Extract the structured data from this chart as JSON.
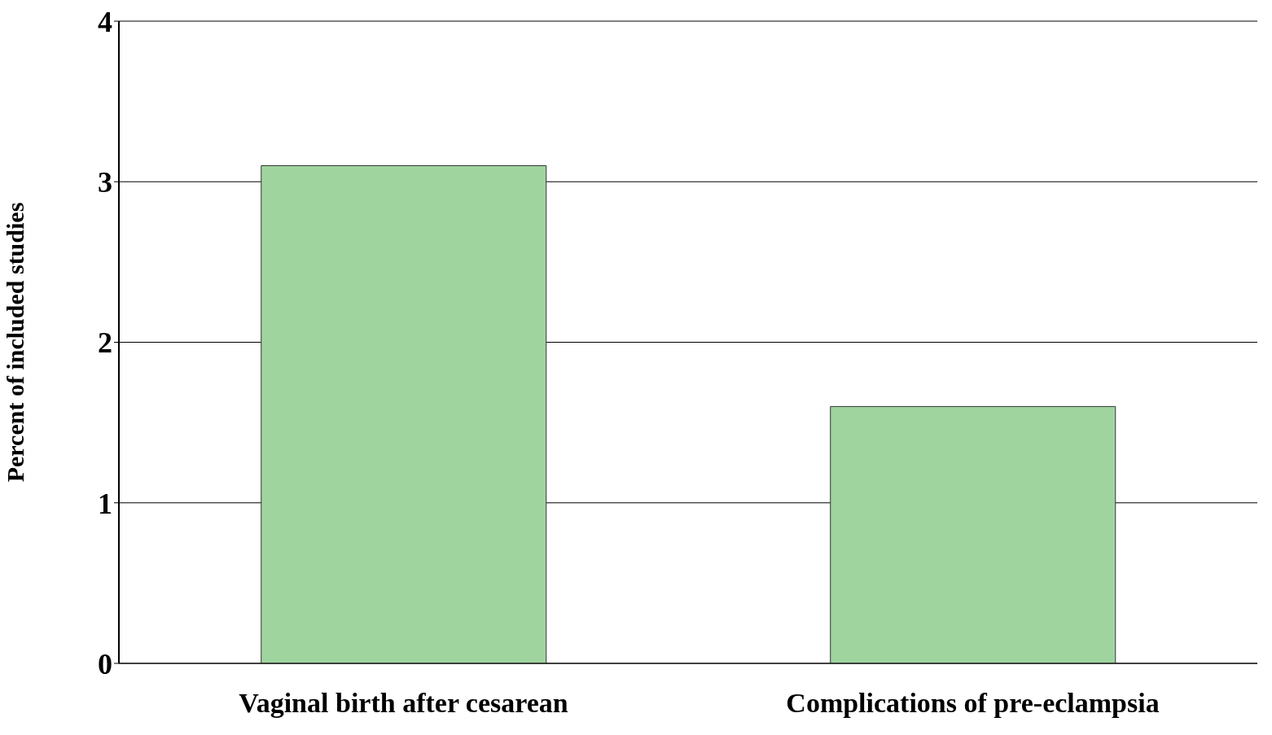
{
  "chart_data": {
    "type": "bar",
    "ylabel": "Percent of included studies",
    "categories": [
      "Vaginal birth after cesarean",
      "Complications of pre-eclampsia"
    ],
    "values": [
      3.1,
      1.6
    ],
    "color": "#9fd49f",
    "ylim": [
      0,
      4
    ],
    "yticks": [
      0,
      1,
      2,
      3,
      4
    ],
    "grid": "y"
  }
}
